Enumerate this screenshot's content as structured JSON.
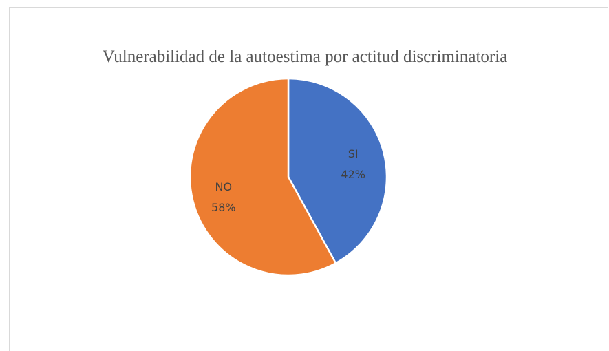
{
  "chart_data": {
    "type": "pie",
    "title": "Vulnerabilidad de la autoestima por actitud discriminatoria",
    "categories": [
      "SI",
      "NO"
    ],
    "values": [
      42,
      58
    ],
    "value_labels": [
      "42%",
      "58%"
    ],
    "colors": [
      "#4472c4",
      "#ed7d31"
    ]
  }
}
